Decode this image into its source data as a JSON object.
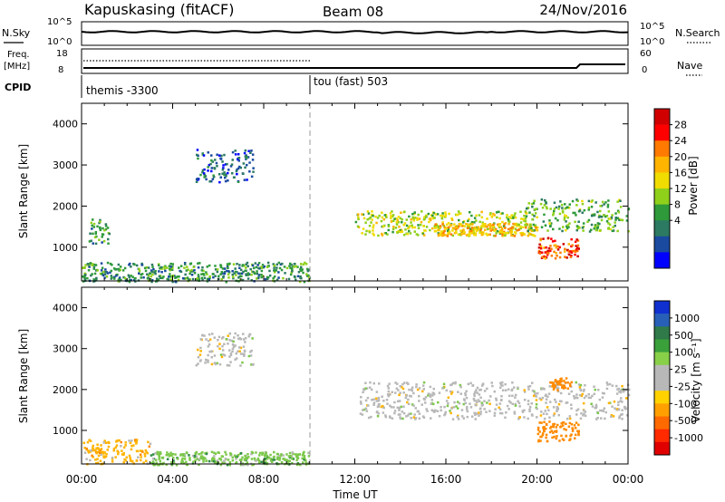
{
  "header": {
    "station": "Kapuskasing (fitACF)",
    "beam": "Beam 08",
    "date": "24/Nov/2016"
  },
  "top_panels": {
    "nsky_label": "N.Sky",
    "nsky_ticks": [
      "10^5",
      "10^0"
    ],
    "nsearch_label": "N.Search",
    "nsearch_ticks": [
      "10^5",
      "10^0"
    ],
    "freq_label": "Freq.",
    "freq_unit": "[MHz]",
    "freq_ticks": [
      "18",
      "8"
    ],
    "nave_label": "Nave",
    "nave_ticks": [
      "60",
      "0"
    ],
    "cpid_label": "CPID",
    "cpid_segments": [
      {
        "start_hour": 0,
        "label": "themis -3300"
      },
      {
        "start_hour": 10,
        "label": "tou (fast) 503"
      }
    ]
  },
  "axes": {
    "x_label": "Time UT",
    "x_ticks": [
      "00:00",
      "04:00",
      "08:00",
      "12:00",
      "16:00",
      "20:00",
      "00:00"
    ],
    "y_label": "Slant Range [km]",
    "y_ticks": [
      "1000",
      "2000",
      "3000",
      "4000"
    ]
  },
  "colorbars": {
    "power": {
      "label": "Power [dB]",
      "ticks": [
        "28",
        "24",
        "20",
        "16",
        "12",
        "8",
        "4"
      ],
      "colors": [
        "#d10000",
        "#ff0000",
        "#ff7a00",
        "#ffb400",
        "#f0dc00",
        "#8fd01a",
        "#2e9a3a",
        "#2c7a62",
        "#1a4aa0",
        "#0000ff"
      ]
    },
    "velocity": {
      "label": "Velocity [m s⁻¹]",
      "ticks": [
        "1000",
        "500",
        "100",
        "25",
        "-25",
        "-100",
        "-500",
        "-1000"
      ],
      "colors": [
        "#1030d0",
        "#2860b8",
        "#2f7a48",
        "#3aa03a",
        "#88d048",
        "#b8b8b8",
        "#b8b8b8",
        "#ffd200",
        "#ffa000",
        "#ff6a00",
        "#ff2a00",
        "#e00000"
      ]
    }
  },
  "chart_data": [
    {
      "type": "heatmap",
      "title": "Power",
      "xlabel": "Time UT",
      "ylabel": "Slant Range [km]",
      "xlim_hours": [
        0,
        24
      ],
      "ylim_km": [
        180,
        4500
      ],
      "colorbar_label": "Power [dB]",
      "colorbar_range": [
        0,
        32
      ],
      "regions": [
        {
          "t": [
            0.0,
            10.0
          ],
          "r": [
            180,
            650
          ],
          "value": 10
        },
        {
          "t": [
            0.3,
            1.2
          ],
          "r": [
            1100,
            1700
          ],
          "value": 10
        },
        {
          "t": [
            5.0,
            7.5
          ],
          "r": [
            2600,
            3400
          ],
          "value": 6
        },
        {
          "t": [
            12.0,
            19.5
          ],
          "r": [
            1300,
            1900
          ],
          "value": 16
        },
        {
          "t": [
            15.5,
            20.0
          ],
          "r": [
            1300,
            1600
          ],
          "value": 20
        },
        {
          "t": [
            20.0,
            21.8
          ],
          "r": [
            750,
            1250
          ],
          "value": 26
        },
        {
          "t": [
            19.5,
            24.0
          ],
          "r": [
            1400,
            2200
          ],
          "value": 12
        }
      ]
    },
    {
      "type": "heatmap",
      "title": "Velocity",
      "xlabel": "Time UT",
      "ylabel": "Slant Range [km]",
      "xlim_hours": [
        0,
        24
      ],
      "ylim_km": [
        180,
        4500
      ],
      "colorbar_label": "Velocity [m s⁻¹]",
      "colorbar_range": [
        -1000,
        1000
      ],
      "regions": [
        {
          "t": [
            0.0,
            3.0
          ],
          "r": [
            200,
            800
          ],
          "value": -100
        },
        {
          "t": [
            3.0,
            10.0
          ],
          "r": [
            180,
            500
          ],
          "value": 100
        },
        {
          "t": [
            5.0,
            7.5
          ],
          "r": [
            2600,
            3400
          ],
          "value": 0
        },
        {
          "t": [
            12.0,
            24.0
          ],
          "r": [
            1300,
            2200
          ],
          "value": 0
        },
        {
          "t": [
            20.0,
            21.8
          ],
          "r": [
            750,
            1250
          ],
          "value": -300
        },
        {
          "t": [
            20.5,
            21.5
          ],
          "r": [
            2000,
            2300
          ],
          "value": -300
        }
      ]
    }
  ]
}
